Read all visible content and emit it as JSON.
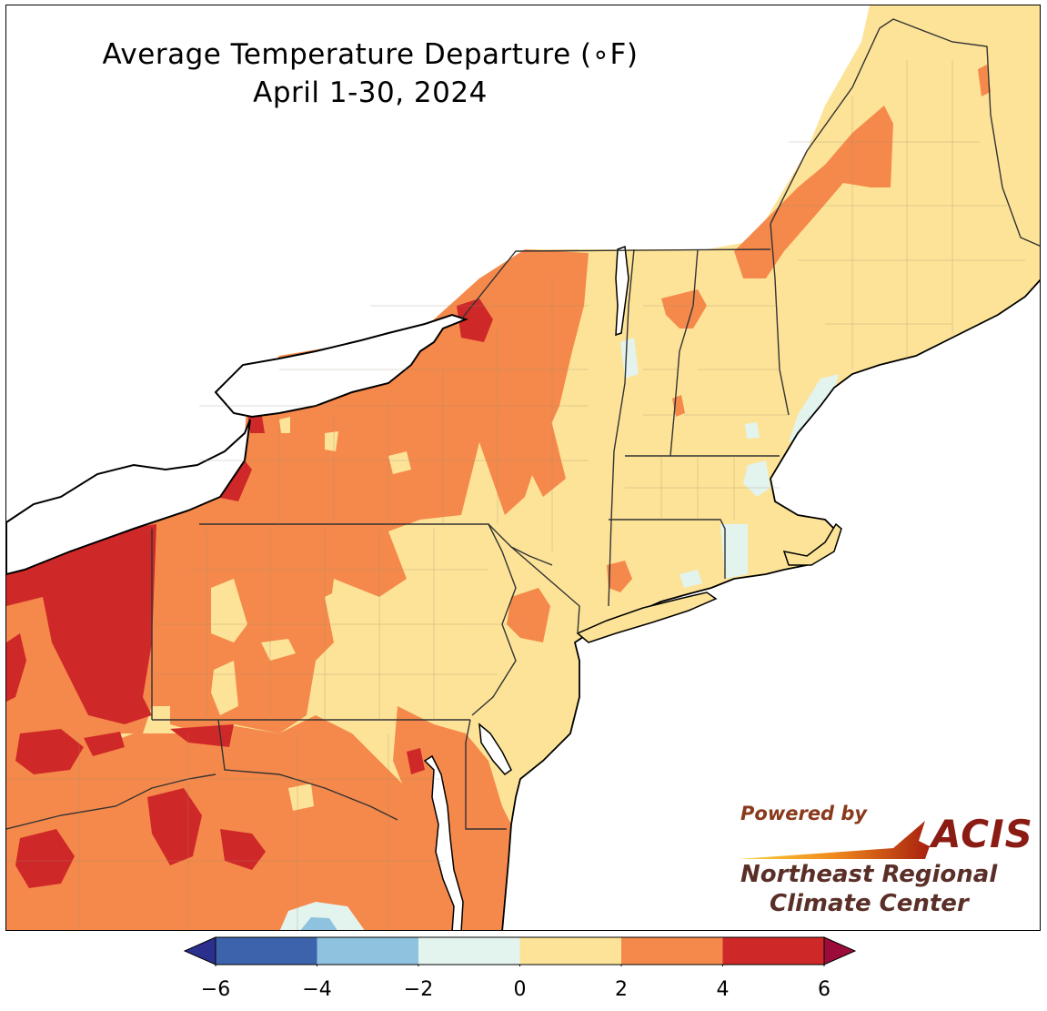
{
  "title": {
    "line1": "Average Temperature Departure (∘F)",
    "line2": "April 1-30, 2024"
  },
  "legend": {
    "bins": [
      {
        "from": -6,
        "to": -4,
        "color": "#3d63ad"
      },
      {
        "from": -4,
        "to": -2,
        "color": "#8ec2de"
      },
      {
        "from": -2,
        "to": 0,
        "color": "#e3f3ed"
      },
      {
        "from": 0,
        "to": 2,
        "color": "#fde397"
      },
      {
        "from": 2,
        "to": 4,
        "color": "#f5894b"
      },
      {
        "from": 4,
        "to": 6,
        "color": "#cf2828"
      }
    ],
    "under_color": "#2b2f8e",
    "over_color": "#9c0c3a",
    "ticks": [
      "−6",
      "−4",
      "−2",
      "0",
      "2",
      "4",
      "6"
    ]
  },
  "logo": {
    "powered_by": "Powered by",
    "acis": "ACIS",
    "org_line1": "Northeast Regional",
    "org_line2": "Climate Center"
  },
  "colors": {
    "water": "#ffffff",
    "state_border": "#333333",
    "county_border": "#9a8a70"
  }
}
